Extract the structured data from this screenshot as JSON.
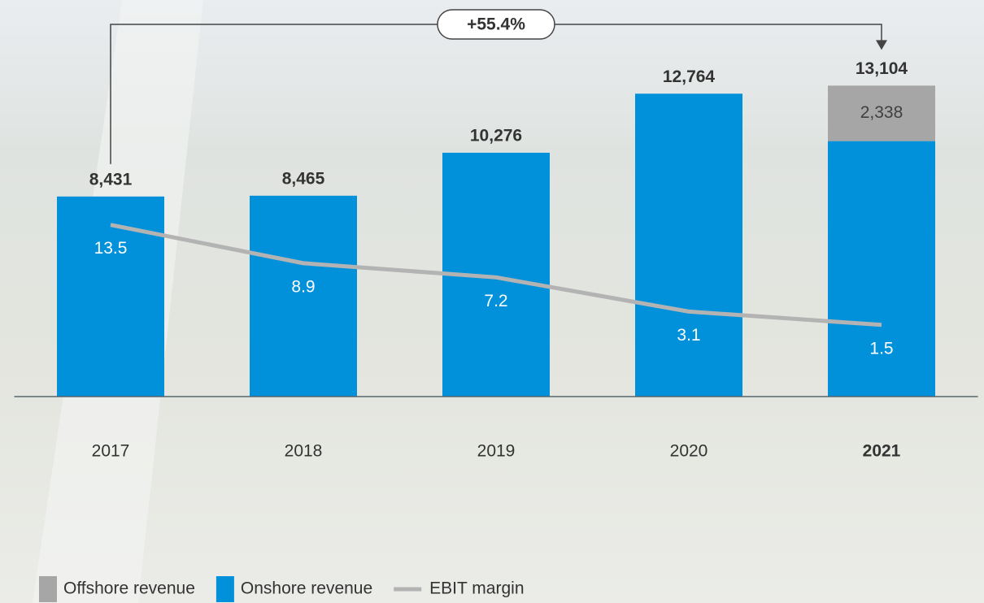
{
  "chart_data": {
    "type": "bar",
    "categories": [
      "2017",
      "2018",
      "2019",
      "2020",
      "2021"
    ],
    "series": [
      {
        "name": "Offshore revenue",
        "color": "#a6a6a6",
        "values": [
          null,
          null,
          null,
          null,
          2338
        ],
        "value_labels": [
          null,
          null,
          null,
          null,
          "2,338"
        ]
      },
      {
        "name": "Onshore revenue",
        "color": "#0091da",
        "values": [
          8431,
          8465,
          10276,
          12764,
          10766
        ]
      },
      {
        "name": "EBIT margin",
        "color": "#b3b3b3",
        "type": "line",
        "axis": "y2",
        "values": [
          13.5,
          8.9,
          7.2,
          3.1,
          1.5
        ]
      }
    ],
    "totals": [
      8431,
      8465,
      10276,
      12764,
      13104
    ],
    "total_labels": [
      "8,431",
      "8,465",
      "10,276",
      "12,764",
      "13,104"
    ],
    "annotation": "+55.4%",
    "highlight_index": 4,
    "ylim": [
      0,
      15000
    ],
    "y2lim": [
      -7.1,
      35.6
    ],
    "legend": "bottom-left"
  }
}
